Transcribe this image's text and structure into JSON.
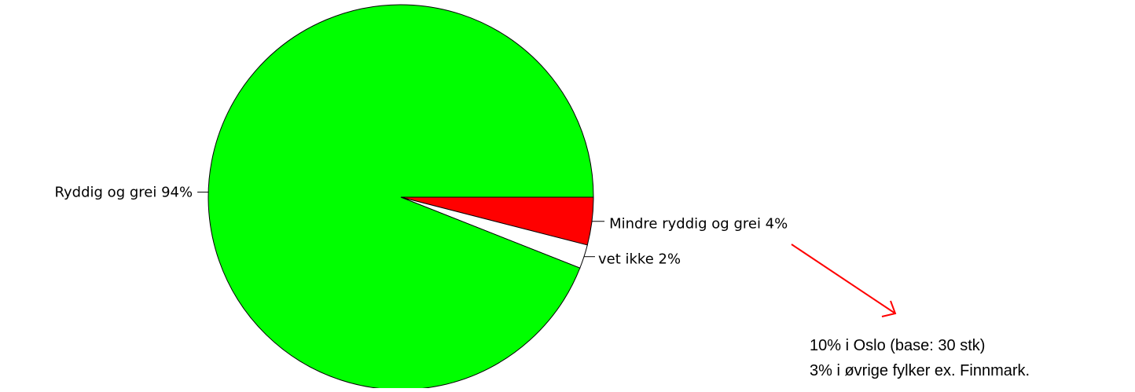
{
  "chart_data": {
    "type": "pie",
    "start_angle_deg": 0,
    "direction": "clockwise",
    "slices": [
      {
        "label": "Mindre ryddig og grei",
        "value": 4,
        "value_label": "4%",
        "color": "#ff0000"
      },
      {
        "label": "vet ikke",
        "value": 2,
        "value_label": "2%",
        "color": "#ffffff"
      },
      {
        "label": "Ryddig og grei",
        "value": 94,
        "value_label": "94%",
        "color": "#00ff00"
      }
    ],
    "outline_color": "#000000",
    "annotation": {
      "arrow_color": "#ff0000",
      "lines": [
        "10% i Oslo (base: 30 stk)",
        "3% i øvrige fylker ex. Finnmark."
      ]
    }
  }
}
